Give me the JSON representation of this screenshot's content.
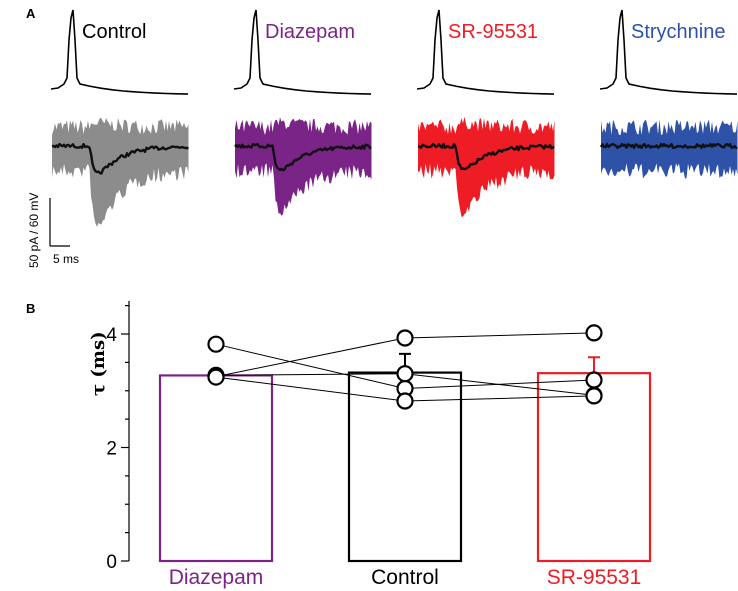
{
  "panel_a": {
    "letter": "A",
    "conditions": [
      {
        "label": "Control",
        "color": "#000000",
        "fill": "#8c8c8c",
        "has_response": true
      },
      {
        "label": "Diazepam",
        "color": "#7b2487",
        "fill": "#7b2487",
        "has_response": true
      },
      {
        "label": "SR-95531",
        "color": "#ee1c24",
        "fill": "#ee1c24",
        "has_response": true
      },
      {
        "label": "Strychnine",
        "color": "#2e52a8",
        "fill": "#2e52a8",
        "has_response": false
      }
    ],
    "scale_bar": {
      "vertical_label": "50 pA / 60 mV",
      "horizontal_label": "5 ms"
    }
  },
  "chart_data": {
    "type": "bar",
    "panel_letter": "B",
    "title": "",
    "xlabel": "",
    "ylabel": "τ (ms)",
    "ylim": [
      0,
      4.5
    ],
    "yticks": [
      0,
      2,
      4
    ],
    "categories": [
      "Diazepam",
      "Control",
      "SR-95531"
    ],
    "colors": [
      "#7b2487",
      "#000000",
      "#ee1c24"
    ],
    "values": [
      3.27,
      3.32,
      3.31
    ],
    "errors": [
      0,
      0.33,
      0.28
    ],
    "cells": [
      [
        3.82,
        3.04,
        3.19
      ],
      [
        3.27,
        3.3,
        2.92
      ],
      [
        3.25,
        3.93,
        4.02
      ],
      [
        3.24,
        2.82,
        2.91
      ]
    ]
  }
}
